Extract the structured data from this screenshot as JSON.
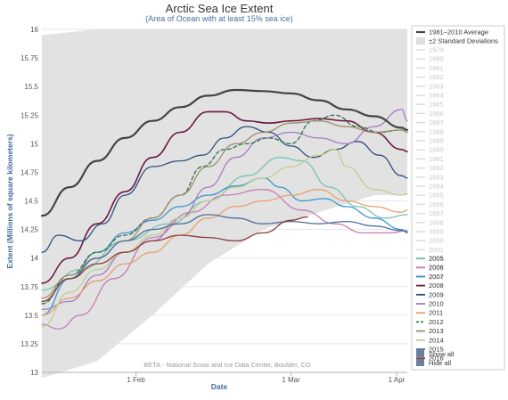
{
  "chart_data": {
    "type": "line",
    "title": "Arctic Sea Ice Extent",
    "subtitle": "(Area of Ocean with at least 15% sea ice)",
    "xlabel": "Date",
    "ylabel": "Extent (Millions of square kilometers)",
    "credit": "BETA - National Snow and Ice Data Center, Boulder, CO",
    "xlim": [
      15,
      81
    ],
    "ylim": [
      13,
      16
    ],
    "y_ticks": [
      {
        "v": 13,
        "label": "13"
      },
      {
        "v": 13.25,
        "label": "13.25"
      },
      {
        "v": 13.5,
        "label": "13.5"
      },
      {
        "v": 13.75,
        "label": "13.75"
      },
      {
        "v": 14,
        "label": "14"
      },
      {
        "v": 14.25,
        "label": "14.25"
      },
      {
        "v": 14.5,
        "label": "14.5"
      },
      {
        "v": 14.75,
        "label": "14.75"
      },
      {
        "v": 15,
        "label": "15"
      },
      {
        "v": 15.25,
        "label": "15.25"
      },
      {
        "v": 15.5,
        "label": "15.5"
      },
      {
        "v": 15.75,
        "label": "15.75"
      },
      {
        "v": 16,
        "label": "16"
      }
    ],
    "x_ticks": [
      {
        "v": 32,
        "label": "1 Feb"
      },
      {
        "v": 60,
        "label": "1 Mar"
      },
      {
        "v": 91,
        "label": "1 Apr"
      }
    ],
    "std_band": {
      "x": [
        15,
        25,
        35,
        45,
        55,
        65,
        75,
        81
      ],
      "upper": [
        15.95,
        16.0,
        16.0,
        16.0,
        16.0,
        16.0,
        16.0,
        16.0
      ],
      "lower": [
        12.95,
        13.1,
        13.5,
        13.95,
        14.25,
        14.4,
        14.55,
        14.55
      ]
    },
    "series": [
      {
        "name": "1981–2010 Average",
        "color": "#444444",
        "width": 2.2,
        "dash": "",
        "x": [
          15,
          20,
          25,
          30,
          35,
          40,
          45,
          50,
          55,
          60,
          65,
          70,
          75,
          80,
          81
        ],
        "y": [
          14.37,
          14.62,
          14.85,
          15.05,
          15.2,
          15.32,
          15.42,
          15.47,
          15.46,
          15.44,
          15.38,
          15.3,
          15.24,
          15.14,
          15.12
        ]
      },
      {
        "name": "2005",
        "color": "#76c2b6",
        "width": 1.3,
        "dash": "",
        "x": [
          15,
          22,
          30,
          38,
          45,
          52,
          58,
          62,
          67,
          72,
          77,
          81
        ],
        "y": [
          13.72,
          13.9,
          14.15,
          14.3,
          14.5,
          14.72,
          14.88,
          14.85,
          14.62,
          14.45,
          14.35,
          14.38
        ]
      },
      {
        "name": "2006",
        "color": "#c57fb8",
        "width": 1.3,
        "dash": "",
        "x": [
          15,
          18,
          22,
          28,
          35,
          42,
          48,
          55,
          62,
          68,
          73,
          78,
          81
        ],
        "y": [
          13.42,
          13.38,
          13.5,
          13.82,
          14.18,
          14.4,
          14.55,
          14.6,
          14.42,
          14.3,
          14.22,
          14.22,
          14.24
        ]
      },
      {
        "name": "2007",
        "color": "#3a96cf",
        "width": 1.3,
        "dash": "",
        "x": [
          15,
          20,
          25,
          30,
          35,
          40,
          45,
          50,
          55,
          58,
          62,
          66,
          70,
          75,
          80,
          81
        ],
        "y": [
          13.5,
          13.82,
          14.05,
          14.22,
          14.33,
          14.45,
          14.55,
          14.63,
          14.7,
          14.62,
          14.5,
          14.52,
          14.45,
          14.35,
          14.25,
          14.22
        ]
      },
      {
        "name": "2008",
        "color": "#6b1a44",
        "width": 1.6,
        "dash": "",
        "x": [
          15,
          20,
          25,
          30,
          35,
          40,
          45,
          48,
          52,
          56,
          60,
          65,
          70,
          75,
          80,
          81
        ],
        "y": [
          13.78,
          14.0,
          14.3,
          14.58,
          14.88,
          15.1,
          15.28,
          15.28,
          15.2,
          15.18,
          15.2,
          15.22,
          15.2,
          15.1,
          14.95,
          14.93
        ]
      },
      {
        "name": "2009",
        "color": "#2e4e7a",
        "width": 1.3,
        "dash": "",
        "x": [
          15,
          18,
          22,
          26,
          30,
          35,
          40,
          44,
          48,
          52,
          56,
          60,
          64,
          68,
          72,
          76,
          80,
          81
        ],
        "y": [
          14.05,
          14.2,
          14.15,
          14.3,
          14.55,
          14.8,
          14.85,
          14.9,
          15.05,
          15.15,
          15.1,
          14.98,
          14.88,
          14.95,
          15.02,
          14.9,
          14.72,
          14.7
        ]
      },
      {
        "name": "2010",
        "color": "#a77bc4",
        "width": 1.3,
        "dash": "",
        "x": [
          15,
          20,
          25,
          30,
          35,
          40,
          45,
          50,
          55,
          60,
          65,
          70,
          75,
          80,
          81
        ],
        "y": [
          13.55,
          13.62,
          13.85,
          14.05,
          14.15,
          14.35,
          14.62,
          14.88,
          15.05,
          15.1,
          15.05,
          15.0,
          15.15,
          15.3,
          15.2
        ]
      },
      {
        "name": "2011",
        "color": "#e9a06f",
        "width": 1.3,
        "dash": "",
        "x": [
          15,
          20,
          25,
          30,
          35,
          40,
          45,
          50,
          55,
          60,
          65,
          70,
          75,
          80,
          81
        ],
        "y": [
          13.5,
          13.65,
          13.8,
          13.95,
          14.05,
          14.2,
          14.35,
          14.45,
          14.5,
          14.55,
          14.6,
          14.5,
          14.45,
          14.4,
          14.42
        ]
      },
      {
        "name": "2012",
        "color": "#3a7a4c",
        "width": 1.4,
        "dash": "4,3",
        "x": [
          15,
          20,
          25,
          30,
          35,
          40,
          44,
          48,
          52,
          56,
          60,
          64,
          68,
          72,
          76,
          80,
          81
        ],
        "y": [
          13.6,
          13.85,
          14.05,
          14.2,
          14.35,
          14.55,
          14.8,
          14.95,
          15.0,
          15.05,
          15.0,
          15.2,
          15.25,
          15.15,
          15.1,
          15.12,
          15.1
        ]
      },
      {
        "name": "2013",
        "color": "#9c8f6e",
        "width": 1.3,
        "dash": "",
        "x": [
          15,
          20,
          25,
          30,
          35,
          40,
          45,
          50,
          55,
          60,
          65,
          70,
          75,
          80,
          81
        ],
        "y": [
          13.65,
          13.85,
          14.0,
          14.15,
          14.35,
          14.55,
          14.8,
          15.0,
          15.1,
          15.18,
          15.2,
          15.15,
          15.1,
          15.12,
          15.1
        ]
      },
      {
        "name": "2014",
        "color": "#bcd08f",
        "width": 1.3,
        "dash": "",
        "x": [
          15,
          20,
          25,
          30,
          35,
          40,
          45,
          50,
          55,
          60,
          65,
          68,
          70,
          75,
          80,
          81
        ],
        "y": [
          13.4,
          13.7,
          13.9,
          14.05,
          14.2,
          14.35,
          14.5,
          14.62,
          14.7,
          14.8,
          14.9,
          14.95,
          14.8,
          14.6,
          14.55,
          14.56
        ]
      },
      {
        "name": "2015",
        "color": "#4d6e99",
        "width": 1.3,
        "dash": "",
        "x": [
          15,
          20,
          25,
          30,
          35,
          40,
          45,
          50,
          55,
          60,
          65,
          70,
          75,
          80,
          81
        ],
        "y": [
          13.62,
          13.82,
          14.0,
          14.15,
          14.25,
          14.3,
          14.38,
          14.35,
          14.3,
          14.32,
          14.3,
          14.32,
          14.28,
          14.24,
          14.23
        ]
      },
      {
        "name": "2016",
        "color": "#8c3c3c",
        "width": 1.3,
        "dash": "",
        "x": [
          15,
          20,
          25,
          30,
          35,
          40,
          45,
          50,
          55,
          60,
          63
        ],
        "y": [
          13.62,
          13.82,
          13.95,
          14.05,
          14.15,
          14.2,
          14.18,
          14.15,
          14.22,
          14.33,
          14.36
        ]
      }
    ],
    "legend": {
      "placement": "right",
      "avg_label": "1981–2010 Average",
      "std_label": "±2 Standard Deviations",
      "muted_years": [
        "1979",
        "1980",
        "1981",
        "1982",
        "1983",
        "1984",
        "1985",
        "1986",
        "1987",
        "1988",
        "1989",
        "1990",
        "1991",
        "1992",
        "1993",
        "1994",
        "1995",
        "1996",
        "1997",
        "1998",
        "1999",
        "2000",
        "2001",
        "2002",
        "2003",
        "2004"
      ],
      "show_all": "Show all",
      "hide_all": "Hide all"
    },
    "colors": {
      "band": "#e2e2e2",
      "grid": "#e6e6e6",
      "legend_border": "#cccccc",
      "button": "#6a7fa0"
    },
    "grid": true
  }
}
